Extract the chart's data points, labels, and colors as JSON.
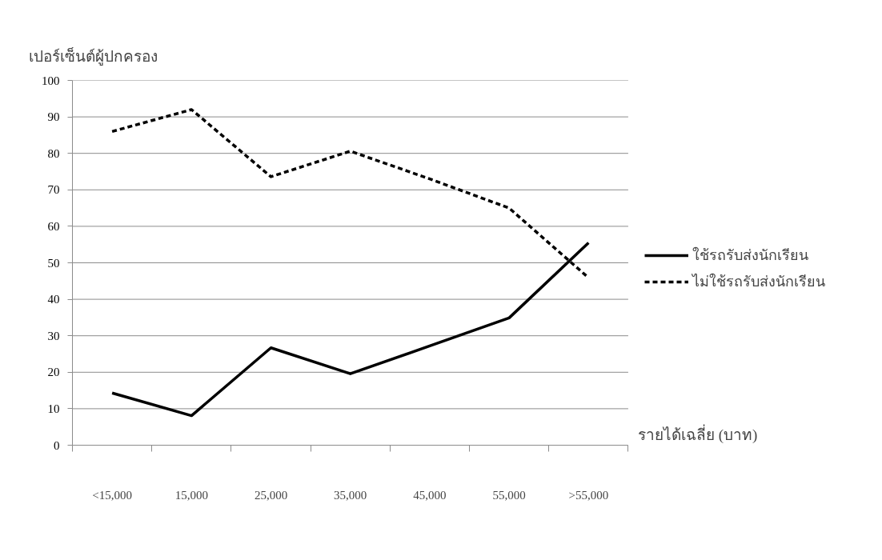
{
  "chart_data": {
    "type": "line",
    "ylabel": "เปอร์เซ็นต์ผู้ปกครอง",
    "xlabel": "รายได้เฉลี่ย (บาท)",
    "categories": [
      "<15,000",
      "15,000",
      "25,000",
      "35,000",
      "45,000",
      "55,000",
      ">55,000"
    ],
    "series": [
      {
        "name": "ใช้รถรับส่งนักเรียน",
        "color": "#000000",
        "line_style": "solid",
        "values": [
          14.3,
          8.1,
          26.7,
          19.6,
          27.2,
          34.9,
          55.5
        ]
      },
      {
        "name": "ไม่ใช้รถรับส่งนักเรียน",
        "color": "#000000",
        "line_style": "dashed",
        "values": [
          86,
          92,
          73.6,
          80.6,
          73,
          65,
          45.9
        ]
      }
    ],
    "ylim": [
      0,
      100
    ],
    "yticks": [
      0,
      10,
      20,
      30,
      40,
      50,
      60,
      70,
      80,
      90,
      100
    ],
    "grid": "y",
    "legend": "right",
    "marker": "none"
  }
}
